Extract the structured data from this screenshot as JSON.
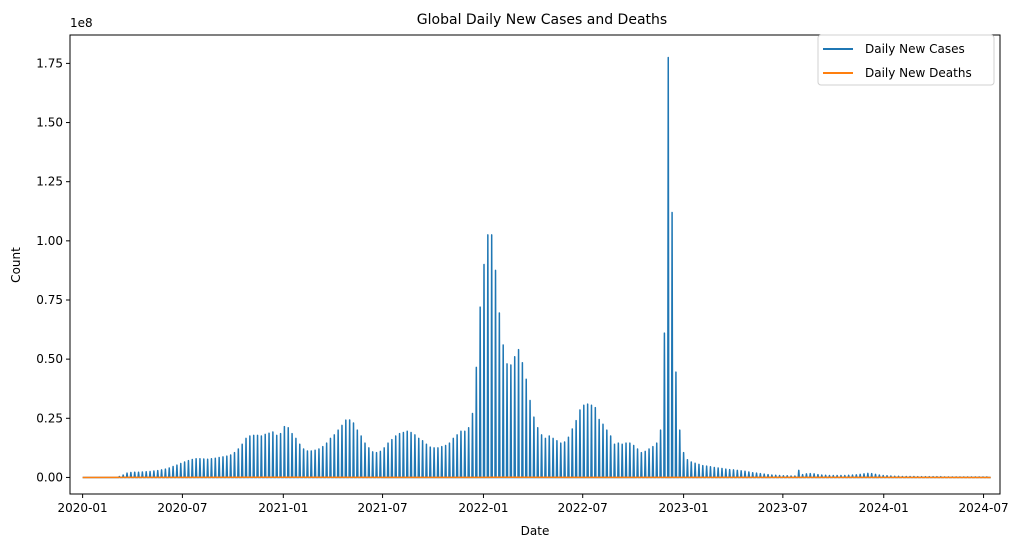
{
  "chart_data": {
    "type": "line",
    "title": "Global Daily New Cases and Deaths",
    "xlabel": "Date",
    "ylabel": "Count",
    "y_offset_text": "1e8",
    "xlim": [
      "2019-12-09",
      "2024-07-31"
    ],
    "ylim": [
      -7000000,
      187000000
    ],
    "x_ticks": [
      "2020-01",
      "2020-07",
      "2021-01",
      "2021-07",
      "2022-01",
      "2022-07",
      "2023-01",
      "2023-07",
      "2024-01",
      "2024-07"
    ],
    "y_ticks": [
      0,
      25000000,
      50000000,
      75000000,
      100000000,
      125000000,
      150000000,
      175000000
    ],
    "y_tick_labels": [
      "0.00",
      "0.25",
      "0.50",
      "0.75",
      "1.00",
      "1.25",
      "1.50",
      "1.75"
    ],
    "legend_position": "top-right",
    "grid": false,
    "series": [
      {
        "name": "Daily New Cases",
        "color": "#1f77b4",
        "points": [
          [
            "2020-03-08",
            400000
          ],
          [
            "2020-03-15",
            1000000
          ],
          [
            "2020-03-22",
            1800000
          ],
          [
            "2020-03-29",
            2100000
          ],
          [
            "2020-04-05",
            2200000
          ],
          [
            "2020-04-12",
            2200000
          ],
          [
            "2020-04-19",
            2300000
          ],
          [
            "2020-04-26",
            2400000
          ],
          [
            "2020-05-03",
            2500000
          ],
          [
            "2020-05-10",
            2700000
          ],
          [
            "2020-05-17",
            2900000
          ],
          [
            "2020-05-24",
            3200000
          ],
          [
            "2020-05-31",
            3500000
          ],
          [
            "2020-06-07",
            4000000
          ],
          [
            "2020-06-14",
            4600000
          ],
          [
            "2020-06-21",
            5200000
          ],
          [
            "2020-06-28",
            5900000
          ],
          [
            "2020-07-05",
            6500000
          ],
          [
            "2020-07-12",
            7100000
          ],
          [
            "2020-07-19",
            7600000
          ],
          [
            "2020-07-26",
            7900000
          ],
          [
            "2020-08-02",
            7900000
          ],
          [
            "2020-08-09",
            7800000
          ],
          [
            "2020-08-16",
            7700000
          ],
          [
            "2020-08-23",
            7900000
          ],
          [
            "2020-08-30",
            8100000
          ],
          [
            "2020-09-06",
            8400000
          ],
          [
            "2020-09-13",
            8700000
          ],
          [
            "2020-09-20",
            9000000
          ],
          [
            "2020-09-27",
            9500000
          ],
          [
            "2020-10-04",
            10500000
          ],
          [
            "2020-10-11",
            12000000
          ],
          [
            "2020-10-18",
            14000000
          ],
          [
            "2020-10-25",
            16500000
          ],
          [
            "2020-11-01",
            17500000
          ],
          [
            "2020-11-08",
            17800000
          ],
          [
            "2020-11-15",
            17800000
          ],
          [
            "2020-11-22",
            17500000
          ],
          [
            "2020-11-29",
            18200000
          ],
          [
            "2020-12-06",
            18700000
          ],
          [
            "2020-12-13",
            19200000
          ],
          [
            "2020-12-20",
            17800000
          ],
          [
            "2020-12-27",
            18500000
          ],
          [
            "2021-01-03",
            21500000
          ],
          [
            "2021-01-10",
            21000000
          ],
          [
            "2021-01-17",
            18500000
          ],
          [
            "2021-01-24",
            16500000
          ],
          [
            "2021-01-31",
            14000000
          ],
          [
            "2021-02-07",
            12000000
          ],
          [
            "2021-02-14",
            11200000
          ],
          [
            "2021-02-21",
            11200000
          ],
          [
            "2021-02-28",
            11500000
          ],
          [
            "2021-03-07",
            12000000
          ],
          [
            "2021-03-14",
            13000000
          ],
          [
            "2021-03-21",
            14500000
          ],
          [
            "2021-03-28",
            16500000
          ],
          [
            "2021-04-04",
            18000000
          ],
          [
            "2021-04-11",
            20000000
          ],
          [
            "2021-04-18",
            22000000
          ],
          [
            "2021-04-25",
            24200000
          ],
          [
            "2021-05-02",
            24300000
          ],
          [
            "2021-05-09",
            23000000
          ],
          [
            "2021-05-16",
            20000000
          ],
          [
            "2021-05-23",
            17500000
          ],
          [
            "2021-05-30",
            14500000
          ],
          [
            "2021-06-06",
            12500000
          ],
          [
            "2021-06-13",
            10800000
          ],
          [
            "2021-06-20",
            10500000
          ],
          [
            "2021-06-27",
            11000000
          ],
          [
            "2021-07-04",
            12500000
          ],
          [
            "2021-07-11",
            14500000
          ],
          [
            "2021-07-18",
            16000000
          ],
          [
            "2021-07-25",
            17500000
          ],
          [
            "2021-08-01",
            18500000
          ],
          [
            "2021-08-08",
            19000000
          ],
          [
            "2021-08-15",
            19500000
          ],
          [
            "2021-08-22",
            19000000
          ],
          [
            "2021-08-29",
            18000000
          ],
          [
            "2021-09-05",
            16500000
          ],
          [
            "2021-09-12",
            15500000
          ],
          [
            "2021-09-19",
            14000000
          ],
          [
            "2021-09-26",
            12800000
          ],
          [
            "2021-10-03",
            12500000
          ],
          [
            "2021-10-10",
            12500000
          ],
          [
            "2021-10-17",
            13000000
          ],
          [
            "2021-10-24",
            13500000
          ],
          [
            "2021-10-31",
            14500000
          ],
          [
            "2021-11-07",
            16500000
          ],
          [
            "2021-11-14",
            18000000
          ],
          [
            "2021-11-21",
            19500000
          ],
          [
            "2021-11-28",
            19500000
          ],
          [
            "2021-12-05",
            21000000
          ],
          [
            "2021-12-12",
            27000000
          ],
          [
            "2021-12-19",
            46500000
          ],
          [
            "2021-12-26",
            72000000
          ],
          [
            "2022-01-02",
            90000000
          ],
          [
            "2022-01-09",
            102500000
          ],
          [
            "2022-01-16",
            102500000
          ],
          [
            "2022-01-23",
            87500000
          ],
          [
            "2022-01-30",
            69500000
          ],
          [
            "2022-02-06",
            56000000
          ],
          [
            "2022-02-13",
            48000000
          ],
          [
            "2022-02-20",
            47500000
          ],
          [
            "2022-02-27",
            51000000
          ],
          [
            "2022-03-06",
            54000000
          ],
          [
            "2022-03-13",
            48500000
          ],
          [
            "2022-03-20",
            41500000
          ],
          [
            "2022-03-27",
            32500000
          ],
          [
            "2022-04-03",
            25500000
          ],
          [
            "2022-04-10",
            21000000
          ],
          [
            "2022-04-17",
            18000000
          ],
          [
            "2022-04-24",
            16500000
          ],
          [
            "2022-05-01",
            17500000
          ],
          [
            "2022-05-08",
            16500000
          ],
          [
            "2022-05-15",
            15500000
          ],
          [
            "2022-05-22",
            14500000
          ],
          [
            "2022-05-29",
            15000000
          ],
          [
            "2022-06-05",
            17000000
          ],
          [
            "2022-06-12",
            20500000
          ],
          [
            "2022-06-19",
            24000000
          ],
          [
            "2022-06-26",
            28500000
          ],
          [
            "2022-07-03",
            30500000
          ],
          [
            "2022-07-10",
            31000000
          ],
          [
            "2022-07-17",
            30500000
          ],
          [
            "2022-07-24",
            29500000
          ],
          [
            "2022-07-31",
            24500000
          ],
          [
            "2022-08-07",
            22500000
          ],
          [
            "2022-08-14",
            20000000
          ],
          [
            "2022-08-21",
            17500000
          ],
          [
            "2022-08-28",
            14000000
          ],
          [
            "2022-09-04",
            14500000
          ],
          [
            "2022-09-11",
            14000000
          ],
          [
            "2022-09-18",
            14500000
          ],
          [
            "2022-09-25",
            14500000
          ],
          [
            "2022-10-02",
            13500000
          ],
          [
            "2022-10-09",
            12000000
          ],
          [
            "2022-10-16",
            10500000
          ],
          [
            "2022-10-23",
            11000000
          ],
          [
            "2022-10-30",
            12000000
          ],
          [
            "2022-11-06",
            13000000
          ],
          [
            "2022-11-13",
            14500000
          ],
          [
            "2022-11-20",
            20000000
          ],
          [
            "2022-11-27",
            61000000
          ],
          [
            "2022-12-04",
            177500000
          ],
          [
            "2022-12-11",
            112000000
          ],
          [
            "2022-12-18",
            44500000
          ],
          [
            "2022-12-25",
            20000000
          ],
          [
            "2023-01-01",
            10500000
          ],
          [
            "2023-01-08",
            7500000
          ],
          [
            "2023-01-15",
            6500000
          ],
          [
            "2023-01-22",
            6000000
          ],
          [
            "2023-01-29",
            5500000
          ],
          [
            "2023-02-05",
            5000000
          ],
          [
            "2023-02-12",
            4800000
          ],
          [
            "2023-02-19",
            4500000
          ],
          [
            "2023-02-26",
            4200000
          ],
          [
            "2023-03-05",
            4000000
          ],
          [
            "2023-03-12",
            3800000
          ],
          [
            "2023-03-19",
            3500000
          ],
          [
            "2023-03-26",
            3300000
          ],
          [
            "2023-04-02",
            3200000
          ],
          [
            "2023-04-09",
            3000000
          ],
          [
            "2023-04-16",
            2800000
          ],
          [
            "2023-04-23",
            2600000
          ],
          [
            "2023-04-30",
            2300000
          ],
          [
            "2023-05-07",
            2000000
          ],
          [
            "2023-05-14",
            1800000
          ],
          [
            "2023-05-21",
            1600000
          ],
          [
            "2023-05-28",
            1400000
          ],
          [
            "2023-06-04",
            1200000
          ],
          [
            "2023-06-11",
            1000000
          ],
          [
            "2023-06-18",
            900000
          ],
          [
            "2023-06-25",
            800000
          ],
          [
            "2023-07-02",
            700000
          ],
          [
            "2023-07-09",
            700000
          ],
          [
            "2023-07-16",
            600000
          ],
          [
            "2023-07-23",
            600000
          ],
          [
            "2023-07-30",
            3000000
          ],
          [
            "2023-08-06",
            1200000
          ],
          [
            "2023-08-13",
            1500000
          ],
          [
            "2023-08-20",
            1600000
          ],
          [
            "2023-08-27",
            1500000
          ],
          [
            "2023-09-03",
            1200000
          ],
          [
            "2023-09-10",
            1000000
          ],
          [
            "2023-09-17",
            900000
          ],
          [
            "2023-09-24",
            800000
          ],
          [
            "2023-10-01",
            800000
          ],
          [
            "2023-10-08",
            800000
          ],
          [
            "2023-10-15",
            800000
          ],
          [
            "2023-10-22",
            800000
          ],
          [
            "2023-10-29",
            900000
          ],
          [
            "2023-11-05",
            1000000
          ],
          [
            "2023-11-12",
            1100000
          ],
          [
            "2023-11-19",
            1300000
          ],
          [
            "2023-11-26",
            1500000
          ],
          [
            "2023-12-03",
            1700000
          ],
          [
            "2023-12-10",
            1600000
          ],
          [
            "2023-12-17",
            1300000
          ],
          [
            "2023-12-24",
            1000000
          ],
          [
            "2023-12-31",
            800000
          ],
          [
            "2024-01-07",
            700000
          ],
          [
            "2024-01-14",
            600000
          ],
          [
            "2024-01-21",
            500000
          ],
          [
            "2024-01-28",
            500000
          ],
          [
            "2024-02-04",
            400000
          ],
          [
            "2024-02-11",
            400000
          ],
          [
            "2024-02-18",
            400000
          ],
          [
            "2024-02-25",
            400000
          ],
          [
            "2024-03-03",
            300000
          ],
          [
            "2024-03-10",
            300000
          ],
          [
            "2024-03-17",
            300000
          ],
          [
            "2024-03-24",
            300000
          ],
          [
            "2024-03-31",
            300000
          ],
          [
            "2024-04-07",
            300000
          ],
          [
            "2024-04-14",
            300000
          ],
          [
            "2024-04-21",
            200000
          ],
          [
            "2024-04-28",
            200000
          ],
          [
            "2024-05-05",
            200000
          ],
          [
            "2024-05-12",
            200000
          ],
          [
            "2024-05-19",
            200000
          ],
          [
            "2024-05-26",
            200000
          ],
          [
            "2024-06-02",
            200000
          ],
          [
            "2024-06-09",
            200000
          ],
          [
            "2024-06-16",
            200000
          ],
          [
            "2024-06-23",
            200000
          ],
          [
            "2024-06-30",
            200000
          ],
          [
            "2024-07-07",
            200000
          ]
        ]
      },
      {
        "name": "Daily New Deaths",
        "color": "#ff7f0e",
        "points": [
          [
            "2020-01-01",
            0
          ],
          [
            "2020-03-29",
            40000
          ],
          [
            "2020-06-28",
            35000
          ],
          [
            "2020-12-27",
            80000
          ],
          [
            "2021-01-24",
            90000
          ],
          [
            "2021-06-27",
            50000
          ],
          [
            "2021-12-26",
            50000
          ],
          [
            "2022-01-30",
            70000
          ],
          [
            "2022-06-26",
            15000
          ],
          [
            "2022-12-25",
            20000
          ],
          [
            "2023-06-25",
            5000
          ],
          [
            "2024-07-14",
            1000
          ]
        ]
      }
    ]
  }
}
